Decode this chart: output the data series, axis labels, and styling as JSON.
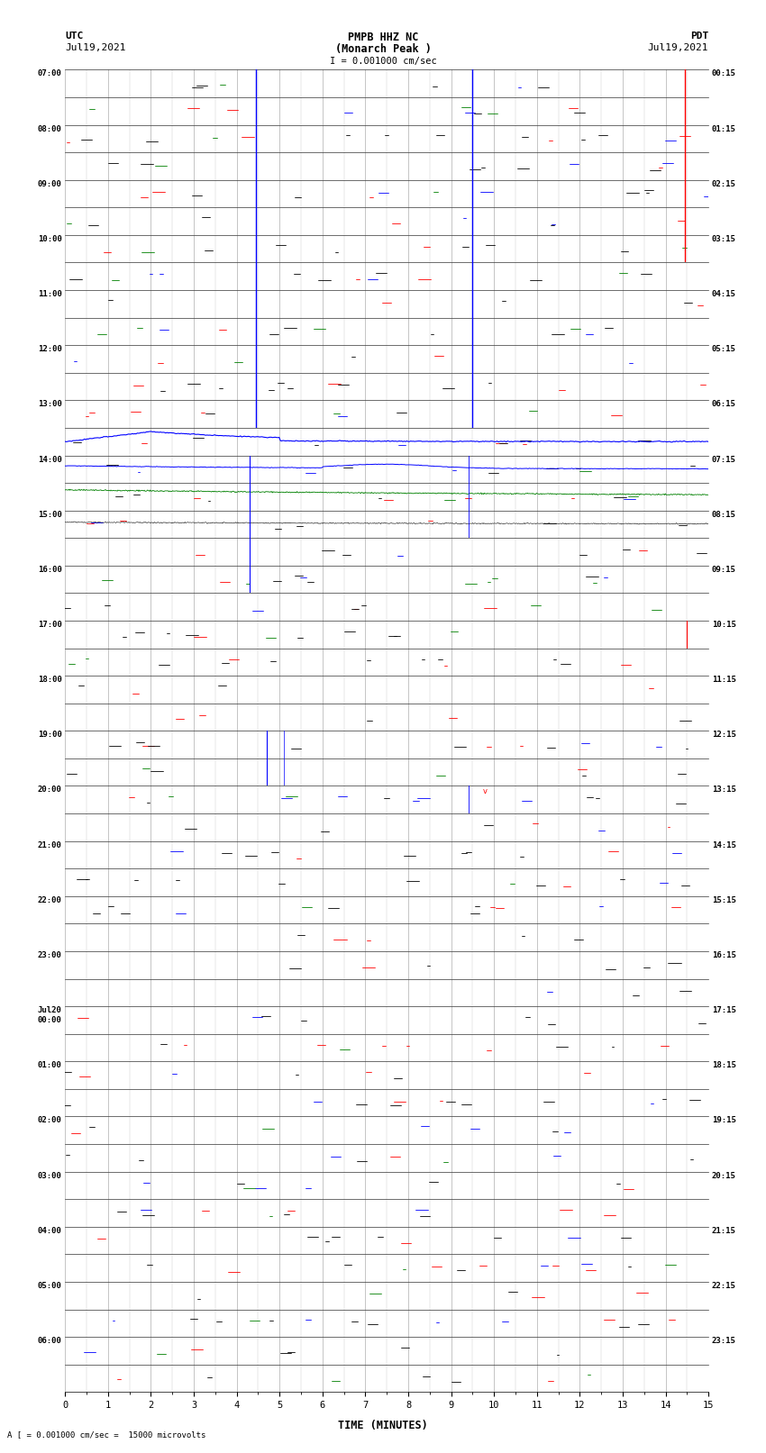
{
  "title_line1": "PMPB HHZ NC",
  "title_line2": "(Monarch Peak )",
  "scale_label": "I = 0.001000 cm/sec",
  "left_label": "UTC",
  "left_date": "Jul19,2021",
  "right_label": "PDT",
  "right_date": "Jul19,2021",
  "bottom_note": "A [ = 0.001000 cm/sec =  15000 microvolts",
  "xlabel": "TIME (MINUTES)",
  "xlim": [
    0,
    15
  ],
  "xticks": [
    0,
    1,
    2,
    3,
    4,
    5,
    6,
    7,
    8,
    9,
    10,
    11,
    12,
    13,
    14,
    15
  ],
  "fig_width": 8.5,
  "fig_height": 16.13,
  "bg_color": "#ffffff",
  "left_times_with_row": [
    [
      0,
      "07:00"
    ],
    [
      2,
      "08:00"
    ],
    [
      4,
      "09:00"
    ],
    [
      6,
      "10:00"
    ],
    [
      8,
      "11:00"
    ],
    [
      10,
      "12:00"
    ],
    [
      12,
      "13:00"
    ],
    [
      14,
      "14:00"
    ],
    [
      16,
      "15:00"
    ],
    [
      18,
      "16:00"
    ],
    [
      20,
      "17:00"
    ],
    [
      22,
      "18:00"
    ],
    [
      24,
      "19:00"
    ],
    [
      26,
      "20:00"
    ],
    [
      28,
      "21:00"
    ],
    [
      30,
      "22:00"
    ],
    [
      32,
      "23:00"
    ],
    [
      34,
      "Jul20\n00:00"
    ],
    [
      36,
      "01:00"
    ],
    [
      38,
      "02:00"
    ],
    [
      40,
      "03:00"
    ],
    [
      42,
      "04:00"
    ],
    [
      44,
      "05:00"
    ],
    [
      46,
      "06:00"
    ]
  ],
  "right_times_with_row": [
    [
      0,
      "00:15"
    ],
    [
      2,
      "01:15"
    ],
    [
      4,
      "02:15"
    ],
    [
      6,
      "03:15"
    ],
    [
      8,
      "04:15"
    ],
    [
      10,
      "05:15"
    ],
    [
      12,
      "06:15"
    ],
    [
      14,
      "07:15"
    ],
    [
      16,
      "08:15"
    ],
    [
      18,
      "09:15"
    ],
    [
      20,
      "10:15"
    ],
    [
      22,
      "11:15"
    ],
    [
      24,
      "12:15"
    ],
    [
      26,
      "13:15"
    ],
    [
      28,
      "14:15"
    ],
    [
      30,
      "15:15"
    ],
    [
      32,
      "16:15"
    ],
    [
      34,
      "17:15"
    ],
    [
      36,
      "18:15"
    ],
    [
      38,
      "19:15"
    ],
    [
      40,
      "20:15"
    ],
    [
      42,
      "21:15"
    ],
    [
      44,
      "22:15"
    ],
    [
      46,
      "23:15"
    ]
  ],
  "num_rows": 48
}
